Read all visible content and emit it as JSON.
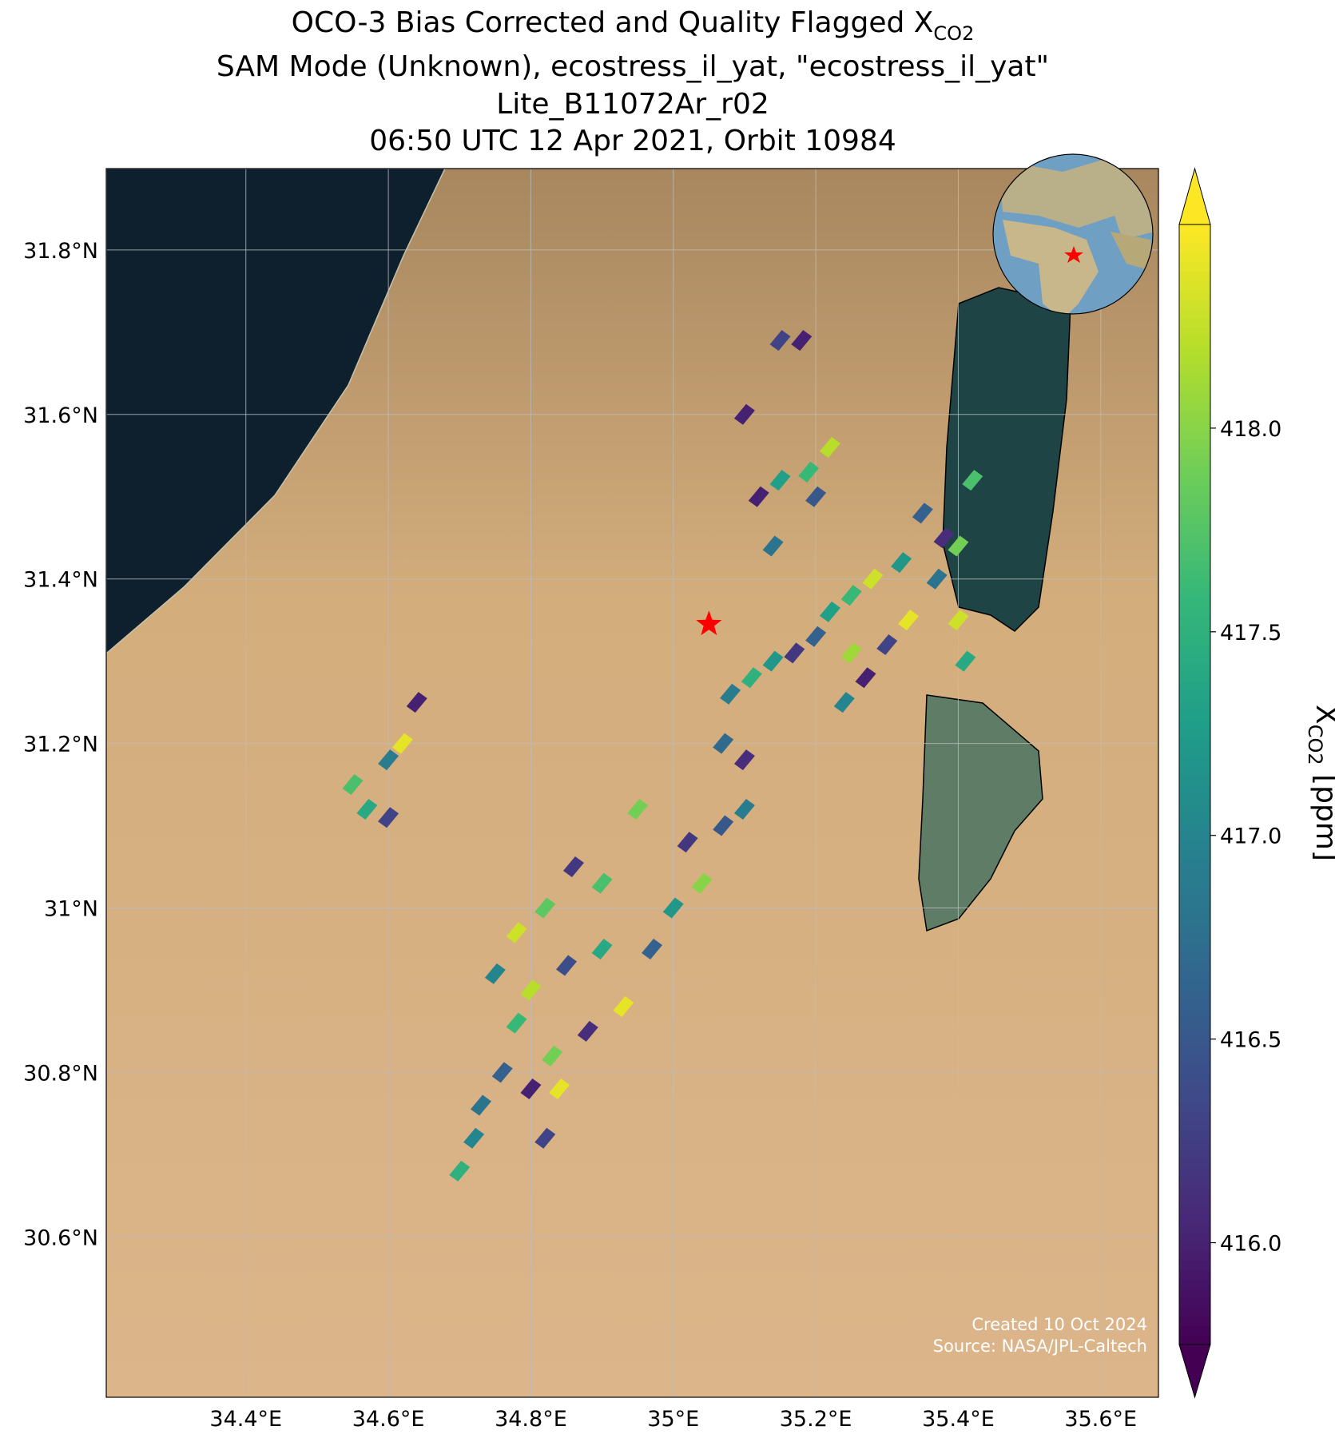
{
  "chart_data": {
    "type": "map",
    "title": {
      "main": "OCO-3 Bias Corrected and Quality Flagged X",
      "subscript": "CO2"
    },
    "subtitle_lines": [
      "SAM Mode (Unknown), ecostress_il_yat, \"ecostress_il_yat\"",
      "Lite_B11072Ar_r02",
      "06:50 UTC 12 Apr 2021, Orbit 10984"
    ],
    "xlim": [
      34.204,
      35.681
    ],
    "ylim": [
      30.405,
      31.899
    ],
    "xticks": [
      {
        "value": 34.4,
        "label": "34.4°E"
      },
      {
        "value": 34.6,
        "label": "34.6°E"
      },
      {
        "value": 34.8,
        "label": "34.8°E"
      },
      {
        "value": 35.0,
        "label": "35°E"
      },
      {
        "value": 35.2,
        "label": "35.2°E"
      },
      {
        "value": 35.4,
        "label": "35.4°E"
      },
      {
        "value": 35.6,
        "label": "35.6°E"
      }
    ],
    "yticks": [
      {
        "value": 30.6,
        "label": "30.6°N"
      },
      {
        "value": 30.8,
        "label": "30.8°N"
      },
      {
        "value": 31.0,
        "label": "31°N"
      },
      {
        "value": 31.2,
        "label": "31.2°N"
      },
      {
        "value": 31.4,
        "label": "31.4°N"
      },
      {
        "value": 31.6,
        "label": "31.6°N"
      },
      {
        "value": 31.8,
        "label": "31.8°N"
      }
    ],
    "grid": true,
    "colorbar": {
      "label": {
        "main": "X",
        "subscript": "CO2",
        "unit": " [ppm]"
      },
      "clim": [
        415.75,
        418.5
      ],
      "ticks": [
        {
          "value": 416.0,
          "label": "416.0"
        },
        {
          "value": 416.5,
          "label": "416.5"
        },
        {
          "value": 417.0,
          "label": "417.0"
        },
        {
          "value": 417.5,
          "label": "417.5"
        },
        {
          "value": 418.0,
          "label": "418.0"
        }
      ],
      "colormap": "viridis"
    },
    "target": {
      "lon": 35.05,
      "lat": 31.345,
      "color": "#ff0000"
    },
    "soundings": {
      "lon": [
        35.15,
        35.18,
        35.1,
        35.12,
        35.15,
        35.14,
        35.19,
        35.22,
        35.2,
        35.35,
        35.32,
        35.28,
        35.25,
        35.22,
        35.2,
        35.17,
        35.14,
        35.11,
        35.08,
        35.25,
        35.24,
        35.27,
        35.3,
        35.33,
        35.37,
        35.4,
        35.42,
        35.38,
        35.4,
        35.41,
        35.07,
        35.1,
        34.55,
        34.6,
        34.62,
        34.57,
        34.6,
        34.64,
        35.07,
        35.1,
        35.02,
        35.04,
        35.0,
        34.97,
        34.95,
        34.86,
        34.82,
        34.78,
        34.75,
        34.8,
        34.85,
        34.9,
        34.93,
        34.88,
        34.83,
        34.78,
        34.8,
        34.84,
        34.76,
        34.72,
        34.7,
        34.73,
        34.82,
        34.9
      ],
      "lat": [
        31.69,
        31.69,
        31.6,
        31.5,
        31.52,
        31.44,
        31.53,
        31.56,
        31.5,
        31.48,
        31.42,
        31.4,
        31.38,
        31.36,
        31.33,
        31.31,
        31.3,
        31.28,
        31.26,
        31.31,
        31.25,
        31.28,
        31.32,
        31.35,
        31.4,
        31.44,
        31.52,
        31.45,
        31.35,
        31.3,
        31.2,
        31.18,
        31.15,
        31.18,
        31.2,
        31.12,
        31.11,
        31.25,
        31.1,
        31.12,
        31.08,
        31.03,
        31.0,
        30.95,
        31.12,
        31.05,
        31.0,
        30.97,
        30.92,
        30.9,
        30.93,
        30.95,
        30.88,
        30.85,
        30.82,
        30.86,
        30.78,
        30.78,
        30.8,
        30.72,
        30.68,
        30.76,
        30.72,
        31.03
      ],
      "values": [
        416.3,
        416.0,
        416.0,
        416.0,
        417.3,
        416.8,
        417.6,
        418.2,
        416.5,
        416.6,
        417.2,
        418.3,
        417.6,
        417.3,
        416.6,
        416.2,
        417.2,
        417.5,
        416.9,
        418.1,
        417.0,
        416.0,
        416.3,
        418.4,
        416.8,
        417.9,
        417.7,
        416.1,
        418.3,
        417.4,
        416.7,
        416.1,
        417.7,
        416.9,
        418.4,
        417.4,
        416.3,
        416.0,
        416.5,
        416.9,
        416.2,
        418.0,
        417.2,
        416.6,
        417.9,
        416.2,
        417.8,
        418.3,
        417.0,
        418.2,
        416.4,
        417.4,
        418.4,
        416.1,
        417.9,
        417.6,
        416.0,
        418.4,
        416.6,
        417.0,
        417.5,
        416.8,
        416.3,
        417.7
      ]
    },
    "annotation_lines": [
      "Created 10 Oct 2024",
      "Source: NASA/JPL-Caltech"
    ]
  }
}
